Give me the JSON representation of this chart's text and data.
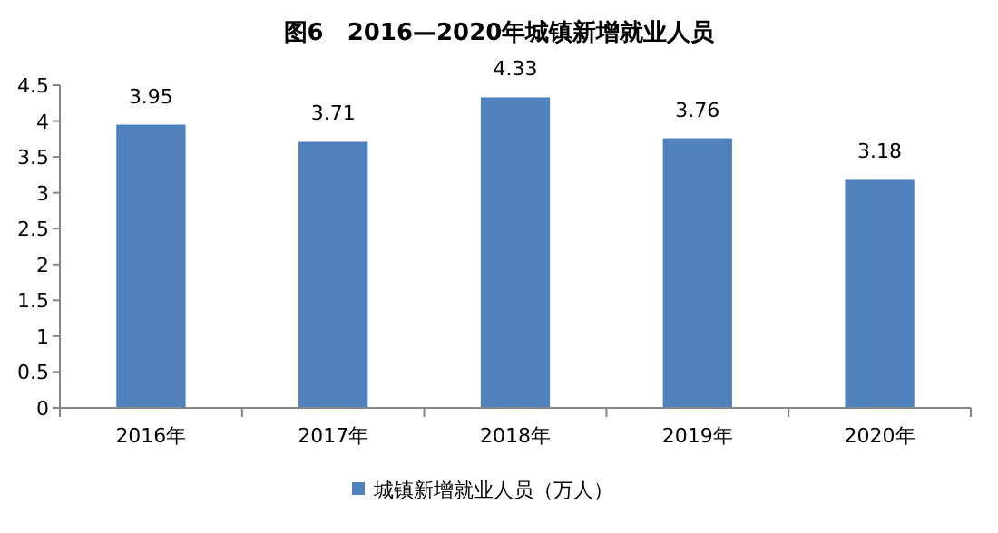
{
  "chart_data": {
    "type": "bar",
    "title": "图6　2016—2020年城镇新增就业人员",
    "categories": [
      "2016年",
      "2017年",
      "2018年",
      "2019年",
      "2020年"
    ],
    "series": [
      {
        "name": "城镇新增就业人员（万人）",
        "color": "#4f81bd",
        "values": [
          3.95,
          3.71,
          4.33,
          3.76,
          3.18
        ]
      }
    ],
    "ylim": [
      0,
      4.5
    ],
    "yticks": [
      0,
      0.5,
      1,
      1.5,
      2,
      2.5,
      3,
      3.5,
      4,
      4.5
    ],
    "grid": false,
    "legend": "bottom",
    "data_labels": true
  }
}
